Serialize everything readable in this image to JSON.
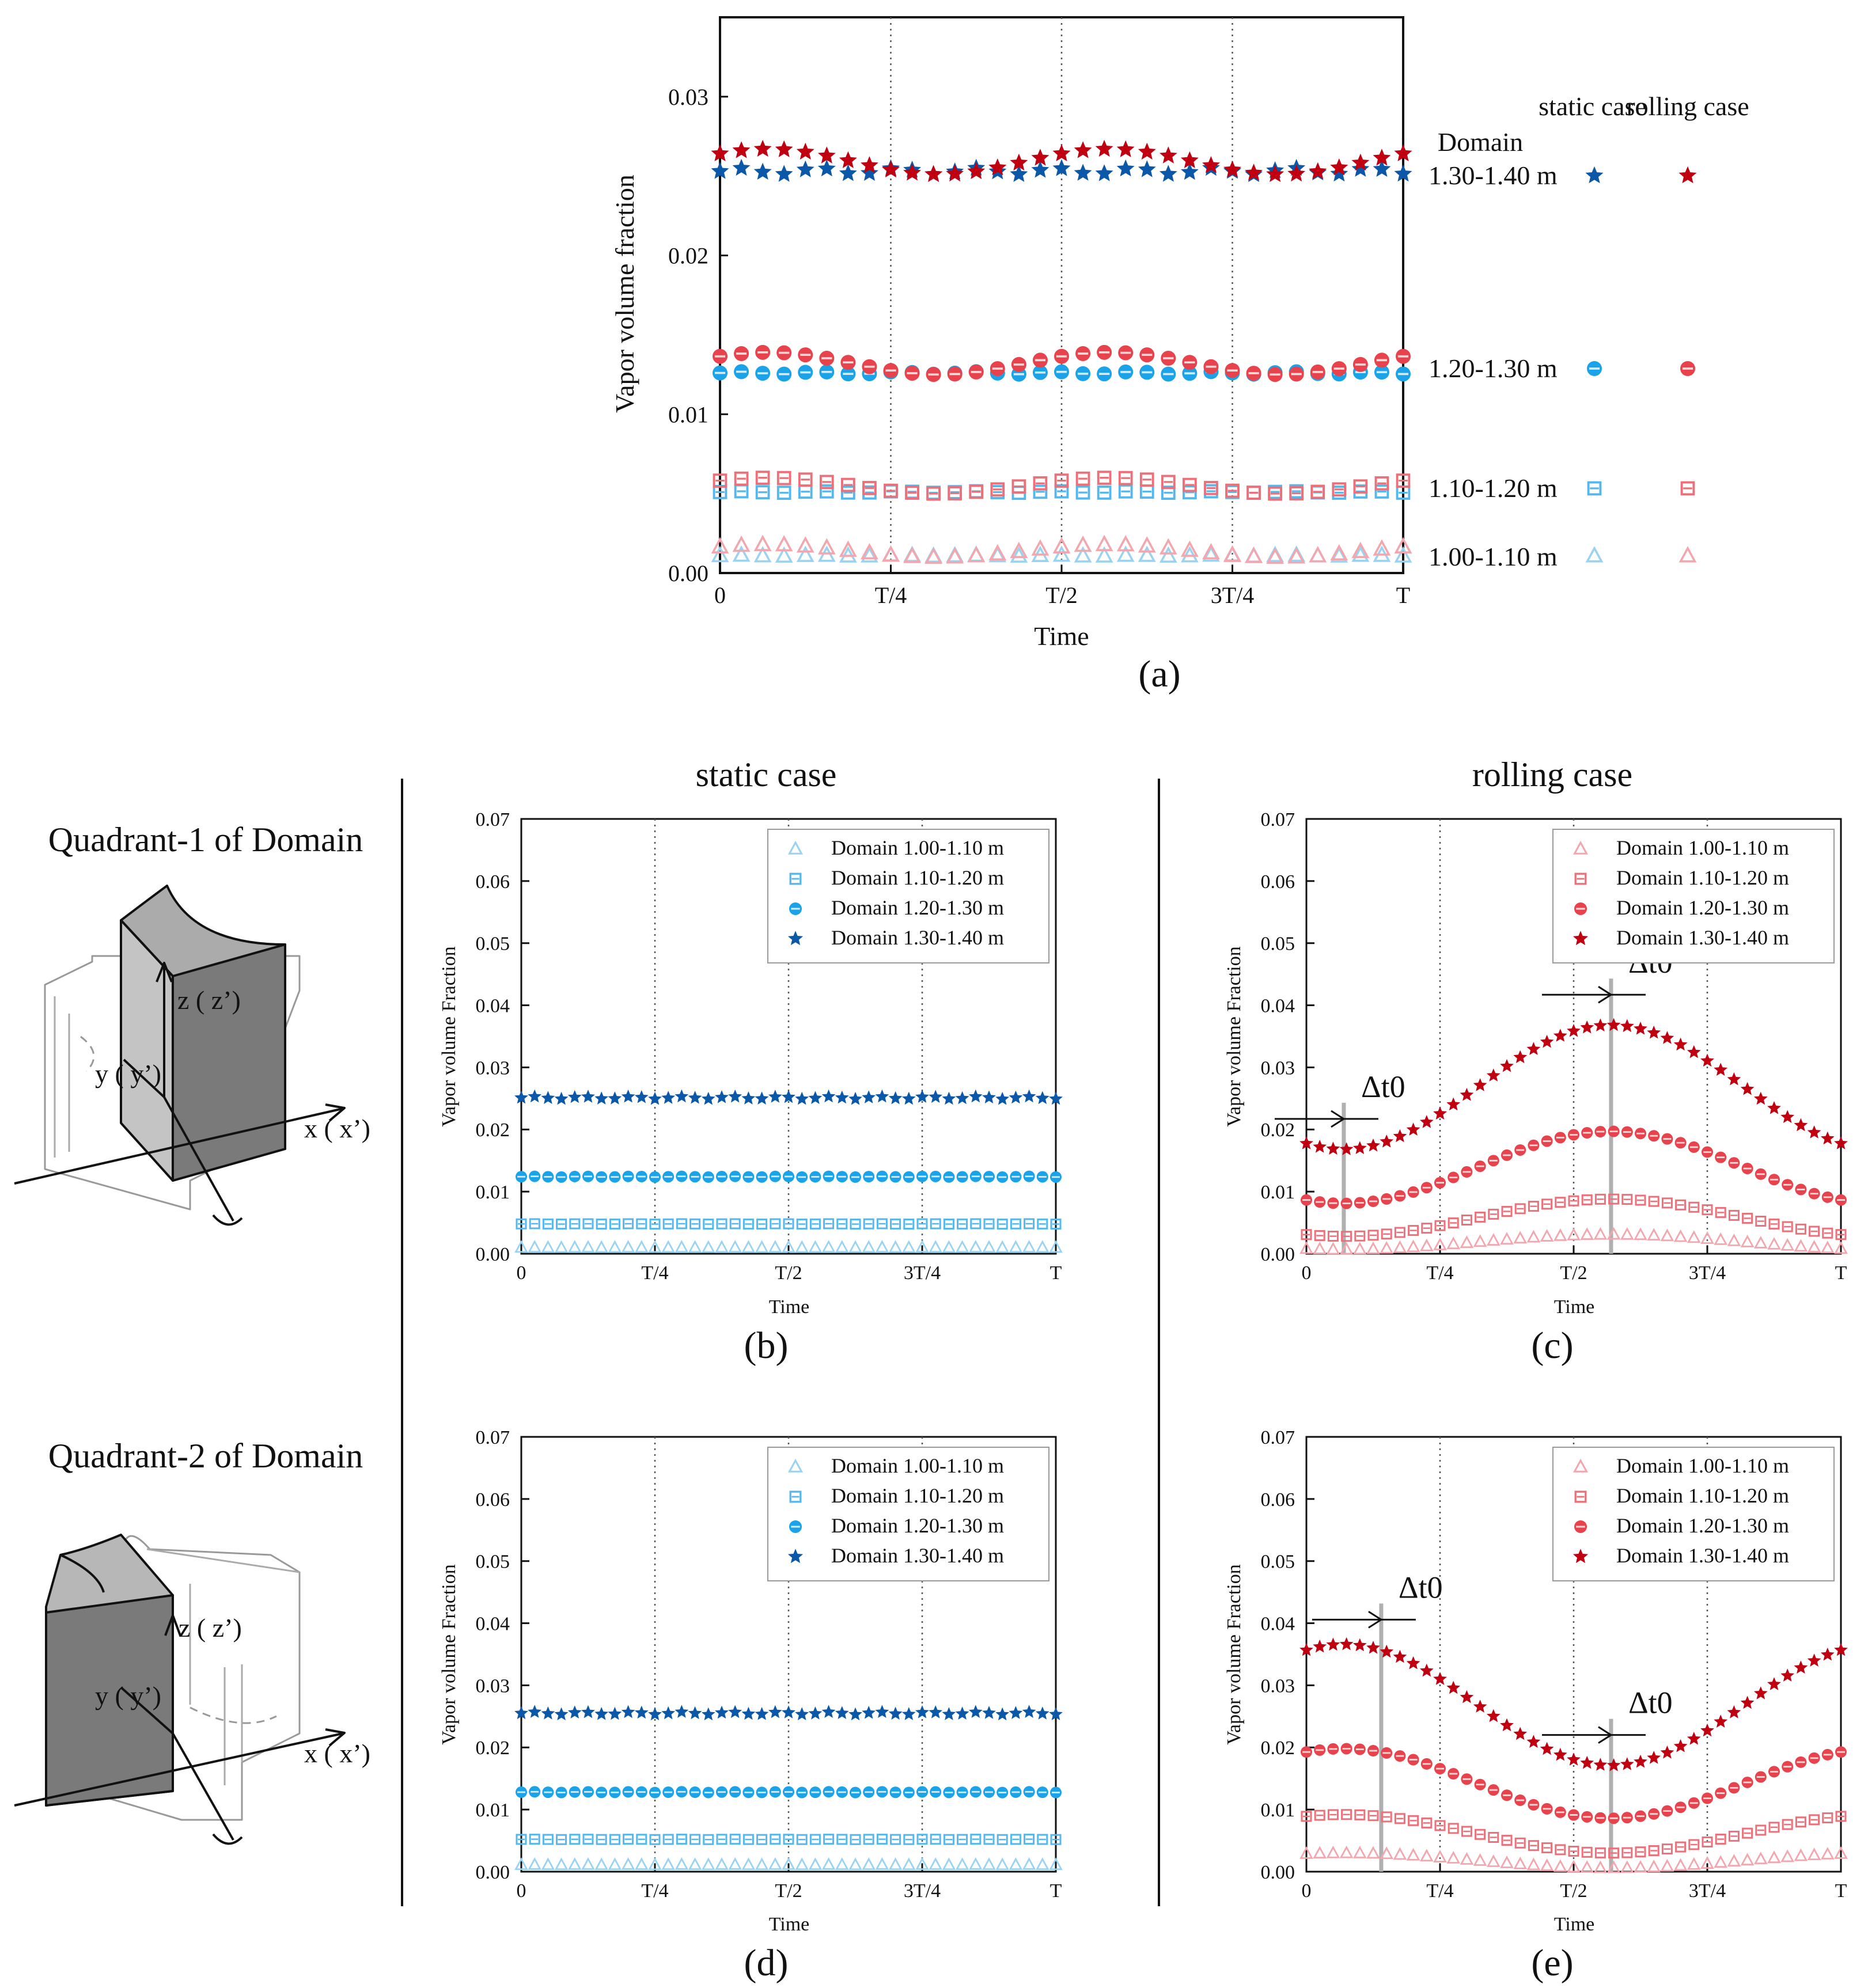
{
  "figure": {
    "panel_labels": [
      "(a)",
      "(b)",
      "(c)",
      "(d)",
      "(e)"
    ],
    "column_titles": [
      "static case",
      "rolling case"
    ],
    "row_titles": [
      "Quadrant-1 of Domain",
      "Quadrant-2 of Domain"
    ],
    "diagram_axes": [
      "z ( z’)",
      "y ( y’)",
      "x ( x’)"
    ],
    "delta_label": "Δt0",
    "colors": {
      "static_1": "#9ad3f2",
      "static_2": "#56b7ec",
      "static_3": "#1aa3e8",
      "static_4": "#0b57a8",
      "rolling_1": "#f3a6ad",
      "rolling_2": "#ec7079",
      "rolling_3": "#e8434d",
      "rolling_4": "#c00010"
    }
  },
  "chart_data": [
    {
      "id": "a",
      "type": "scatter",
      "title": "",
      "xlabel": "Time",
      "ylabel": "Vapor volume fraction",
      "xticks": [
        "0",
        "T/4",
        "T/2",
        "3T/4",
        "T"
      ],
      "yticks": [
        "0.00",
        "0.01",
        "0.02",
        "0.03"
      ],
      "ylim": [
        0,
        0.035
      ],
      "legend": {
        "header": [
          "Domain",
          "static case",
          "rolling case"
        ],
        "rows": [
          "1.30-1.40 m",
          "1.20-1.30 m",
          "1.10-1.20 m",
          "1.00-1.10 m"
        ]
      },
      "series": [
        {
          "name": "1.00-1.10 m static",
          "marker": "triangle",
          "color": "#9ad3f2",
          "formula": "flat",
          "base": 0.0011,
          "amp": 3e-05
        },
        {
          "name": "1.10-1.20 m static",
          "marker": "square",
          "color": "#56b7ec",
          "formula": "flat",
          "base": 0.0051,
          "amp": 5e-05
        },
        {
          "name": "1.20-1.30 m static",
          "marker": "circle",
          "color": "#1aa3e8",
          "formula": "flat",
          "base": 0.0126,
          "amp": 8e-05
        },
        {
          "name": "1.30-1.40 m static",
          "marker": "star",
          "color": "#0b57a8",
          "formula": "flat",
          "base": 0.0253,
          "amp": 0.0002
        },
        {
          "name": "1.00-1.10 m rolling",
          "marker": "triangle",
          "color": "#f3a6ad",
          "formula": "double",
          "base": 0.0014,
          "amp": 0.0004
        },
        {
          "name": "1.10-1.20 m rolling",
          "marker": "square",
          "color": "#ec7079",
          "formula": "double",
          "base": 0.0055,
          "amp": 0.0005
        },
        {
          "name": "1.20-1.30 m rolling",
          "marker": "circle",
          "color": "#e8434d",
          "formula": "double",
          "base": 0.0132,
          "amp": 0.0007
        },
        {
          "name": "1.30-1.40 m rolling",
          "marker": "star",
          "color": "#c00010",
          "formula": "double",
          "base": 0.0259,
          "amp": 0.0008
        }
      ]
    },
    {
      "id": "b",
      "type": "scatter",
      "xlabel": "Time",
      "ylabel": "Vapor volume Fraction",
      "xticks": [
        "0",
        "T/4",
        "T/2",
        "3T/4",
        "T"
      ],
      "yticks": [
        "0.00",
        "0.01",
        "0.02",
        "0.03",
        "0.04",
        "0.05",
        "0.06",
        "0.07"
      ],
      "ylim": [
        0,
        0.07
      ],
      "legend": [
        "Domain 1.00-1.10 m",
        "Domain 1.10-1.20 m",
        "Domain 1.20-1.30 m",
        "Domain 1.30-1.40 m"
      ],
      "series": [
        {
          "name": "Domain 1.00-1.10 m",
          "marker": "triangle",
          "color": "#9ad3f2",
          "formula": "flat",
          "base": 0.001,
          "amp": 2e-05
        },
        {
          "name": "Domain 1.10-1.20 m",
          "marker": "square",
          "color": "#56b7ec",
          "formula": "flat",
          "base": 0.0048,
          "amp": 3e-05
        },
        {
          "name": "Domain 1.20-1.30 m",
          "marker": "circle",
          "color": "#1aa3e8",
          "formula": "flat",
          "base": 0.0124,
          "amp": 6e-05
        },
        {
          "name": "Domain 1.30-1.40 m",
          "marker": "star",
          "color": "#0b57a8",
          "formula": "flat",
          "base": 0.0251,
          "amp": 0.0002
        }
      ]
    },
    {
      "id": "c",
      "type": "scatter",
      "xlabel": "Time",
      "ylabel": "Vapor volume Fraction",
      "xticks": [
        "0",
        "T/4",
        "T/2",
        "3T/4",
        "T"
      ],
      "yticks": [
        "0.00",
        "0.01",
        "0.02",
        "0.03",
        "0.04",
        "0.05",
        "0.06",
        "0.07"
      ],
      "ylim": [
        0,
        0.07
      ],
      "legend": [
        "Domain 1.00-1.10 m",
        "Domain 1.10-1.20 m",
        "Domain 1.20-1.30 m",
        "Domain 1.30-1.40 m"
      ],
      "delta_t0_marks": [
        0.07,
        0.57
      ],
      "series": [
        {
          "name": "Domain 1.00-1.10 m",
          "marker": "triangle",
          "color": "#f3a6ad",
          "formula": "cos",
          "peak": 0.57,
          "min": 0.0007,
          "max": 0.0031
        },
        {
          "name": "Domain 1.10-1.20 m",
          "marker": "square",
          "color": "#ec7079",
          "formula": "cos",
          "peak": 0.57,
          "min": 0.0028,
          "max": 0.0088
        },
        {
          "name": "Domain 1.20-1.30 m",
          "marker": "circle",
          "color": "#e8434d",
          "formula": "cos",
          "peak": 0.57,
          "min": 0.0081,
          "max": 0.0197
        },
        {
          "name": "Domain 1.30-1.40 m",
          "marker": "star",
          "color": "#c00010",
          "formula": "cos",
          "peak": 0.57,
          "min": 0.0168,
          "max": 0.0368
        }
      ]
    },
    {
      "id": "d",
      "type": "scatter",
      "xlabel": "Time",
      "ylabel": "Vapor volume Fraction",
      "xticks": [
        "0",
        "T/4",
        "T/2",
        "3T/4",
        "T"
      ],
      "yticks": [
        "0.00",
        "0.01",
        "0.02",
        "0.03",
        "0.04",
        "0.05",
        "0.06",
        "0.07"
      ],
      "ylim": [
        0,
        0.07
      ],
      "legend": [
        "Domain 1.00-1.10 m",
        "Domain 1.10-1.20 m",
        "Domain 1.20-1.30 m",
        "Domain 1.30-1.40 m"
      ],
      "series": [
        {
          "name": "Domain 1.00-1.10 m",
          "marker": "triangle",
          "color": "#9ad3f2",
          "formula": "flat",
          "base": 0.0011,
          "amp": 2e-05
        },
        {
          "name": "Domain 1.10-1.20 m",
          "marker": "square",
          "color": "#56b7ec",
          "formula": "flat",
          "base": 0.0052,
          "amp": 3e-05
        },
        {
          "name": "Domain 1.20-1.30 m",
          "marker": "circle",
          "color": "#1aa3e8",
          "formula": "flat",
          "base": 0.0128,
          "amp": 6e-05
        },
        {
          "name": "Domain 1.30-1.40 m",
          "marker": "star",
          "color": "#0b57a8",
          "formula": "flat",
          "base": 0.0255,
          "amp": 0.0002
        }
      ]
    },
    {
      "id": "e",
      "type": "scatter",
      "xlabel": "Time",
      "ylabel": "Vapor volume Fraction",
      "xticks": [
        "0",
        "T/4",
        "T/2",
        "3T/4",
        "T"
      ],
      "yticks": [
        "0.00",
        "0.01",
        "0.02",
        "0.03",
        "0.04",
        "0.05",
        "0.06",
        "0.07"
      ],
      "ylim": [
        0,
        0.07
      ],
      "legend": [
        "Domain 1.00-1.10 m",
        "Domain 1.10-1.20 m",
        "Domain 1.20-1.30 m",
        "Domain 1.30-1.40 m"
      ],
      "delta_t0_marks": [
        0.14,
        0.57
      ],
      "series": [
        {
          "name": "Domain 1.00-1.10 m",
          "marker": "triangle",
          "color": "#f3a6ad",
          "formula": "cos",
          "peak": 0.07,
          "min": 0.0006,
          "max": 0.003
        },
        {
          "name": "Domain 1.10-1.20 m",
          "marker": "square",
          "color": "#ec7079",
          "formula": "cos",
          "peak": 0.07,
          "min": 0.003,
          "max": 0.0092
        },
        {
          "name": "Domain 1.20-1.30 m",
          "marker": "circle",
          "color": "#e8434d",
          "formula": "cos",
          "peak": 0.07,
          "min": 0.0086,
          "max": 0.0198
        },
        {
          "name": "Domain 1.30-1.40 m",
          "marker": "star",
          "color": "#c00010",
          "formula": "cos",
          "peak": 0.07,
          "min": 0.0171,
          "max": 0.0366
        }
      ]
    }
  ]
}
